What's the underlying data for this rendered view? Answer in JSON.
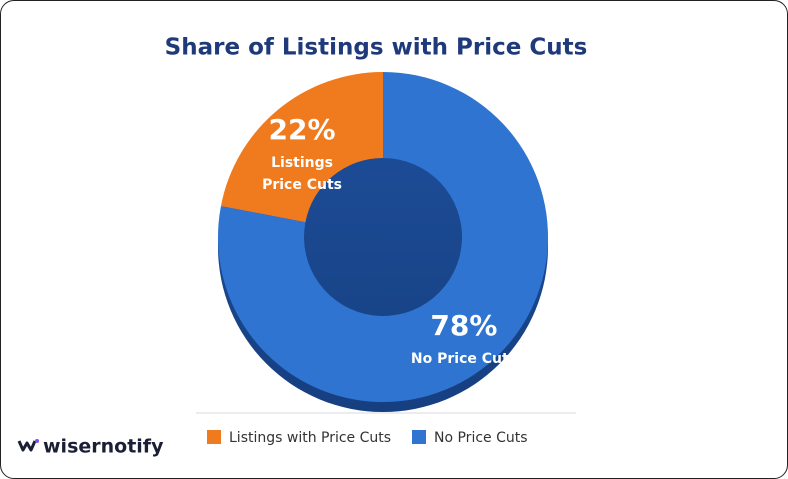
{
  "chart_data": {
    "type": "donut",
    "title": "Share of Listings with Price Cuts",
    "categories": [
      "Listings with Price Cuts",
      "No Price Cuts"
    ],
    "values": [
      22,
      78
    ],
    "value_labels": [
      "22%",
      "78%"
    ],
    "slice_labels": [
      [
        "Listings",
        "Price Cuts"
      ],
      [
        "No Price Cuts"
      ]
    ],
    "colors": [
      "#f07a1e",
      "#2f74d0"
    ],
    "legend": "bottom"
  },
  "brand": "wisernotify"
}
